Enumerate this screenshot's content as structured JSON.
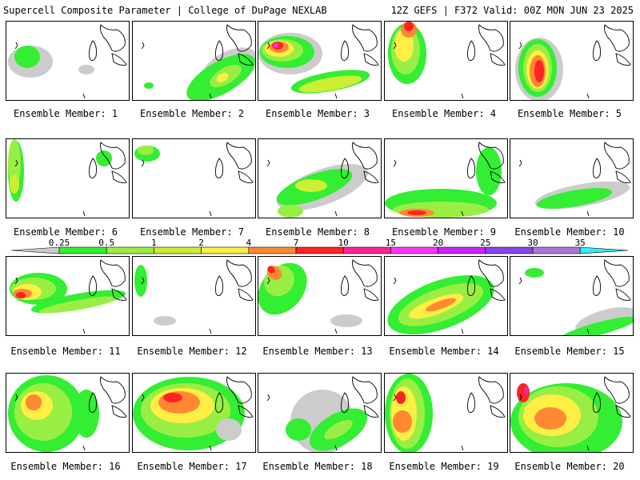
{
  "header": {
    "title_left": "Supercell Composite Parameter | College of DuPage NEXLAB",
    "title_right": "12Z GEFS | F372 Valid: 00Z MON JUN 23 2025"
  },
  "colorbar": {
    "ticks": [
      "0.25",
      "0.5",
      "1",
      "2",
      "4",
      "7",
      "10",
      "15",
      "20",
      "25",
      "30",
      "35"
    ],
    "colors": [
      "#cccccc",
      "#33ee33",
      "#99ee44",
      "#ccee33",
      "#ffee44",
      "#ff8833",
      "#ff2222",
      "#ff2299",
      "#ff33ff",
      "#cc22ff",
      "#8844ee",
      "#aa77dd",
      "#33eeee"
    ]
  },
  "members": [
    {
      "label": "Ensemble Member: 1"
    },
    {
      "label": "Ensemble Member: 2"
    },
    {
      "label": "Ensemble Member: 3"
    },
    {
      "label": "Ensemble Member: 4"
    },
    {
      "label": "Ensemble Member: 5"
    },
    {
      "label": "Ensemble Member: 6"
    },
    {
      "label": "Ensemble Member: 7"
    },
    {
      "label": "Ensemble Member: 8"
    },
    {
      "label": "Ensemble Member: 9"
    },
    {
      "label": "Ensemble Member: 10"
    },
    {
      "label": "Ensemble Member: 11"
    },
    {
      "label": "Ensemble Member: 12"
    },
    {
      "label": "Ensemble Member: 13"
    },
    {
      "label": "Ensemble Member: 14"
    },
    {
      "label": "Ensemble Member: 15"
    },
    {
      "label": "Ensemble Member: 16"
    },
    {
      "label": "Ensemble Member: 17"
    },
    {
      "label": "Ensemble Member: 18"
    },
    {
      "label": "Ensemble Member: 19"
    },
    {
      "label": "Ensemble Member: 20"
    }
  ]
}
